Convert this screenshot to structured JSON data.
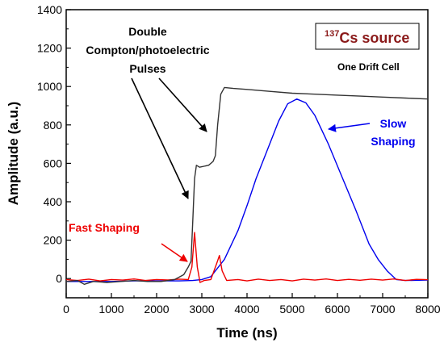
{
  "chart_data": {
    "type": "line",
    "xlabel": "Time (ns)",
    "ylabel": "Amplitude (a.u.)",
    "xlim": [
      0,
      8000
    ],
    "ylim": [
      -100,
      1400
    ],
    "x_ticks": [
      0,
      1000,
      2000,
      3000,
      4000,
      5000,
      6000,
      7000,
      8000
    ],
    "y_ticks": [
      0,
      200,
      400,
      600,
      800,
      1000,
      1200,
      1400
    ],
    "grid": false,
    "series": [
      {
        "name": "Slow Shaping",
        "color": "#0000ee",
        "points": [
          [
            0,
            -15
          ],
          [
            500,
            -15
          ],
          [
            1000,
            -15
          ],
          [
            1500,
            -12
          ],
          [
            2000,
            -12
          ],
          [
            2500,
            -12
          ],
          [
            2800,
            -10
          ],
          [
            3000,
            -5
          ],
          [
            3200,
            10
          ],
          [
            3500,
            100
          ],
          [
            3800,
            250
          ],
          [
            4000,
            380
          ],
          [
            4200,
            520
          ],
          [
            4500,
            700
          ],
          [
            4700,
            820
          ],
          [
            4900,
            910
          ],
          [
            5100,
            935
          ],
          [
            5300,
            915
          ],
          [
            5500,
            850
          ],
          [
            5800,
            700
          ],
          [
            6100,
            530
          ],
          [
            6400,
            360
          ],
          [
            6700,
            180
          ],
          [
            6900,
            100
          ],
          [
            7100,
            40
          ],
          [
            7300,
            -5
          ],
          [
            7500,
            -10
          ],
          [
            8000,
            -8
          ]
        ]
      },
      {
        "name": "Fast Shaping",
        "color": "#ee0000",
        "points": [
          [
            0,
            -5
          ],
          [
            250,
            -10
          ],
          [
            500,
            -3
          ],
          [
            750,
            -12
          ],
          [
            1000,
            -5
          ],
          [
            1250,
            -8
          ],
          [
            1500,
            -2
          ],
          [
            1750,
            -10
          ],
          [
            2000,
            -5
          ],
          [
            2250,
            -7
          ],
          [
            2500,
            -3
          ],
          [
            2700,
            -5
          ],
          [
            2780,
            60
          ],
          [
            2840,
            240
          ],
          [
            2900,
            60
          ],
          [
            2960,
            -20
          ],
          [
            3050,
            -10
          ],
          [
            3200,
            -5
          ],
          [
            3330,
            80
          ],
          [
            3390,
            120
          ],
          [
            3450,
            40
          ],
          [
            3550,
            -10
          ],
          [
            3800,
            -5
          ],
          [
            4000,
            -12
          ],
          [
            4250,
            -3
          ],
          [
            4500,
            -10
          ],
          [
            4750,
            -5
          ],
          [
            5000,
            -12
          ],
          [
            5250,
            -3
          ],
          [
            5500,
            -8
          ],
          [
            5750,
            -2
          ],
          [
            6000,
            -10
          ],
          [
            6250,
            -4
          ],
          [
            6500,
            -9
          ],
          [
            6750,
            -3
          ],
          [
            7000,
            -8
          ],
          [
            7250,
            -2
          ],
          [
            7500,
            -10
          ],
          [
            7750,
            -4
          ],
          [
            8000,
            -6
          ]
        ]
      },
      {
        "name": "Compton/photoelectric pulse",
        "color": "#333333",
        "points": [
          [
            0,
            -15
          ],
          [
            250,
            -10
          ],
          [
            400,
            -30
          ],
          [
            600,
            -15
          ],
          [
            900,
            -20
          ],
          [
            1200,
            -15
          ],
          [
            1500,
            -10
          ],
          [
            1800,
            -15
          ],
          [
            2100,
            -15
          ],
          [
            2400,
            -5
          ],
          [
            2600,
            20
          ],
          [
            2700,
            60
          ],
          [
            2760,
            90
          ],
          [
            2800,
            300
          ],
          [
            2840,
            520
          ],
          [
            2880,
            590
          ],
          [
            2950,
            580
          ],
          [
            3050,
            585
          ],
          [
            3150,
            590
          ],
          [
            3250,
            610
          ],
          [
            3300,
            640
          ],
          [
            3350,
            800
          ],
          [
            3420,
            960
          ],
          [
            3500,
            995
          ],
          [
            3700,
            990
          ],
          [
            4000,
            985
          ],
          [
            4500,
            975
          ],
          [
            5000,
            965
          ],
          [
            5500,
            960
          ],
          [
            6000,
            955
          ],
          [
            6500,
            950
          ],
          [
            7000,
            945
          ],
          [
            7500,
            940
          ],
          [
            8000,
            935
          ]
        ]
      }
    ],
    "annotations": {
      "double_line1": "Double",
      "double_line2": "Compton/photoelectric",
      "double_line3": "Pulses",
      "source_superscript": "137",
      "source_label": "Cs source",
      "one_drift_cell": "One Drift Cell",
      "slow_line1": "Slow",
      "slow_line2": "Shaping",
      "fast": "Fast Shaping"
    }
  }
}
